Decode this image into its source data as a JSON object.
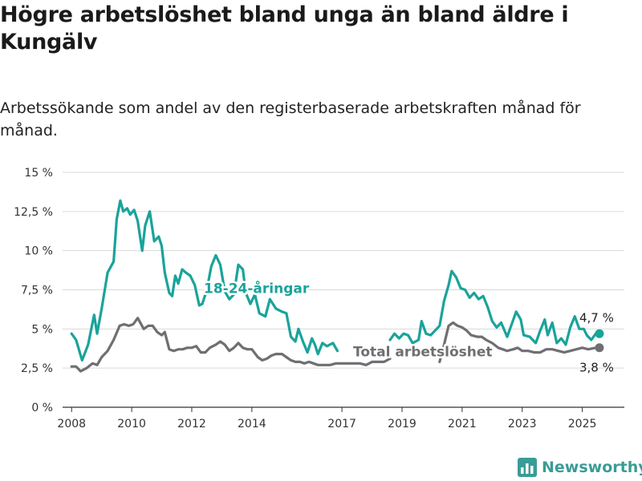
{
  "title": "Högre arbetslöshet bland unga än bland äldre i Kungälv",
  "subtitle": "Arbetssökande som andel av den registerbaserade arbetskraften månad för månad.",
  "brand": {
    "name": "Newsworthy",
    "icon": "bar-chart-logo-icon",
    "color": "#3a9c96"
  },
  "chart_data": {
    "type": "line",
    "ylim": [
      0,
      15
    ],
    "xlim": [
      2007.7,
      2026.4
    ],
    "y_ticks": [
      0,
      2.5,
      5,
      7.5,
      10,
      12.5,
      15
    ],
    "y_tick_labels": [
      "0 %",
      "2,5 %",
      "5 %",
      "7,5 %",
      "10 %",
      "12,5 %",
      "15 %"
    ],
    "x_ticks": [
      2008,
      2010,
      2012,
      2014,
      2017,
      2019,
      2021,
      2023,
      2025
    ],
    "x_tick_labels": [
      "2008",
      "2010",
      "2012",
      "2014",
      "2017",
      "2019",
      "2021",
      "2023",
      "2025"
    ],
    "grid": true,
    "legend": "none",
    "series": [
      {
        "name": "18-24-åringar",
        "color": "#1aa39a",
        "end_label": "4,7 %",
        "points": [
          [
            2008.0,
            4.7
          ],
          [
            2008.15,
            4.3
          ],
          [
            2008.35,
            3.0
          ],
          [
            2008.55,
            4.0
          ],
          [
            2008.75,
            5.9
          ],
          [
            2008.85,
            4.7
          ],
          [
            2009.0,
            6.3
          ],
          [
            2009.2,
            8.6
          ],
          [
            2009.4,
            9.3
          ],
          [
            2009.5,
            12.0
          ],
          [
            2009.62,
            13.2
          ],
          [
            2009.72,
            12.5
          ],
          [
            2009.85,
            12.7
          ],
          [
            2009.95,
            12.3
          ],
          [
            2010.08,
            12.6
          ],
          [
            2010.2,
            11.9
          ],
          [
            2010.35,
            10.0
          ],
          [
            2010.45,
            11.6
          ],
          [
            2010.6,
            12.5
          ],
          [
            2010.75,
            10.6
          ],
          [
            2010.9,
            10.9
          ],
          [
            2011.0,
            10.3
          ],
          [
            2011.1,
            8.6
          ],
          [
            2011.25,
            7.3
          ],
          [
            2011.35,
            7.1
          ],
          [
            2011.45,
            8.4
          ],
          [
            2011.55,
            7.9
          ],
          [
            2011.68,
            8.8
          ],
          [
            2011.8,
            8.6
          ],
          [
            2011.95,
            8.4
          ],
          [
            2012.1,
            7.8
          ],
          [
            2012.25,
            6.5
          ],
          [
            2012.35,
            6.6
          ],
          [
            2012.5,
            7.5
          ],
          [
            2012.65,
            9.0
          ],
          [
            2012.8,
            9.7
          ],
          [
            2012.95,
            9.1
          ],
          [
            2013.1,
            7.4
          ],
          [
            2013.25,
            6.9
          ],
          [
            2013.4,
            7.2
          ],
          [
            2013.55,
            9.1
          ],
          [
            2013.7,
            8.8
          ],
          [
            2013.8,
            7.3
          ],
          [
            2013.95,
            6.6
          ],
          [
            2014.1,
            7.2
          ],
          [
            2014.25,
            6.0
          ],
          [
            2014.45,
            5.8
          ],
          [
            2014.6,
            6.9
          ],
          [
            2014.8,
            6.3
          ],
          [
            2015.0,
            6.1
          ],
          [
            2015.15,
            6.0
          ],
          [
            2015.3,
            4.5
          ],
          [
            2015.45,
            4.2
          ],
          [
            2015.55,
            5.0
          ],
          [
            2015.7,
            4.2
          ],
          [
            2015.85,
            3.5
          ],
          [
            2016.0,
            4.4
          ],
          [
            2016.1,
            4.0
          ],
          [
            2016.2,
            3.4
          ],
          [
            2016.35,
            4.1
          ],
          [
            2016.5,
            3.9
          ],
          [
            2016.7,
            4.1
          ],
          [
            2016.85,
            3.6
          ]
        ],
        "points2": [
          [
            2018.6,
            4.3
          ],
          [
            2018.75,
            4.7
          ],
          [
            2018.9,
            4.4
          ],
          [
            2019.05,
            4.7
          ],
          [
            2019.2,
            4.6
          ],
          [
            2019.35,
            4.1
          ],
          [
            2019.55,
            4.3
          ],
          [
            2019.65,
            5.5
          ],
          [
            2019.8,
            4.7
          ],
          [
            2019.95,
            4.6
          ],
          [
            2020.1,
            4.9
          ],
          [
            2020.25,
            5.2
          ],
          [
            2020.4,
            6.8
          ],
          [
            2020.55,
            7.8
          ],
          [
            2020.65,
            8.7
          ],
          [
            2020.8,
            8.3
          ],
          [
            2020.95,
            7.6
          ],
          [
            2021.1,
            7.5
          ],
          [
            2021.25,
            7.0
          ],
          [
            2021.4,
            7.3
          ],
          [
            2021.55,
            6.9
          ],
          [
            2021.7,
            7.1
          ],
          [
            2021.85,
            6.4
          ],
          [
            2022.0,
            5.5
          ],
          [
            2022.15,
            5.1
          ],
          [
            2022.3,
            5.4
          ],
          [
            2022.5,
            4.5
          ],
          [
            2022.65,
            5.3
          ],
          [
            2022.8,
            6.1
          ],
          [
            2022.95,
            5.6
          ],
          [
            2023.05,
            4.6
          ],
          [
            2023.25,
            4.5
          ],
          [
            2023.45,
            4.1
          ],
          [
            2023.6,
            4.9
          ],
          [
            2023.75,
            5.6
          ],
          [
            2023.85,
            4.6
          ],
          [
            2024.0,
            5.4
          ],
          [
            2024.15,
            4.1
          ],
          [
            2024.3,
            4.4
          ],
          [
            2024.45,
            4.0
          ],
          [
            2024.6,
            5.1
          ],
          [
            2024.75,
            5.8
          ],
          [
            2024.9,
            5.0
          ],
          [
            2025.05,
            5.0
          ],
          [
            2025.15,
            4.6
          ],
          [
            2025.3,
            4.3
          ],
          [
            2025.45,
            4.7
          ]
        ]
      },
      {
        "name": "Total arbetslöshet",
        "color": "#6f6f73",
        "end_label": "3,8 %",
        "points": [
          [
            2008.0,
            2.6
          ],
          [
            2008.15,
            2.6
          ],
          [
            2008.3,
            2.3
          ],
          [
            2008.5,
            2.5
          ],
          [
            2008.7,
            2.8
          ],
          [
            2008.85,
            2.7
          ],
          [
            2009.0,
            3.2
          ],
          [
            2009.2,
            3.6
          ],
          [
            2009.4,
            4.3
          ],
          [
            2009.6,
            5.2
          ],
          [
            2009.75,
            5.3
          ],
          [
            2009.9,
            5.2
          ],
          [
            2010.05,
            5.3
          ],
          [
            2010.2,
            5.7
          ],
          [
            2010.4,
            5.0
          ],
          [
            2010.55,
            5.2
          ],
          [
            2010.7,
            5.2
          ],
          [
            2010.85,
            4.8
          ],
          [
            2011.0,
            4.6
          ],
          [
            2011.1,
            4.8
          ],
          [
            2011.25,
            3.7
          ],
          [
            2011.4,
            3.6
          ],
          [
            2011.55,
            3.7
          ],
          [
            2011.7,
            3.7
          ],
          [
            2011.85,
            3.8
          ],
          [
            2012.0,
            3.8
          ],
          [
            2012.15,
            3.9
          ],
          [
            2012.3,
            3.5
          ],
          [
            2012.45,
            3.5
          ],
          [
            2012.6,
            3.8
          ],
          [
            2012.8,
            4.0
          ],
          [
            2012.95,
            4.2
          ],
          [
            2013.1,
            4.0
          ],
          [
            2013.25,
            3.6
          ],
          [
            2013.4,
            3.8
          ],
          [
            2013.55,
            4.1
          ],
          [
            2013.7,
            3.8
          ],
          [
            2013.85,
            3.7
          ],
          [
            2014.0,
            3.7
          ],
          [
            2014.2,
            3.2
          ],
          [
            2014.35,
            3.0
          ],
          [
            2014.5,
            3.1
          ],
          [
            2014.65,
            3.3
          ],
          [
            2014.8,
            3.4
          ],
          [
            2015.0,
            3.4
          ],
          [
            2015.15,
            3.2
          ],
          [
            2015.3,
            3.0
          ],
          [
            2015.45,
            2.9
          ],
          [
            2015.6,
            2.9
          ],
          [
            2015.75,
            2.8
          ],
          [
            2015.9,
            2.9
          ],
          [
            2016.05,
            2.8
          ],
          [
            2016.2,
            2.7
          ],
          [
            2016.4,
            2.7
          ],
          [
            2016.6,
            2.7
          ],
          [
            2016.8,
            2.8
          ],
          [
            2017.0,
            2.8
          ],
          [
            2017.2,
            2.8
          ],
          [
            2017.4,
            2.8
          ],
          [
            2017.6,
            2.8
          ],
          [
            2017.8,
            2.7
          ],
          [
            2018.0,
            2.9
          ],
          [
            2018.2,
            2.9
          ],
          [
            2018.4,
            2.9
          ],
          [
            2018.6,
            3.1
          ]
        ],
        "points2": [
          [
            2020.25,
            2.9
          ],
          [
            2020.4,
            4.0
          ],
          [
            2020.55,
            5.2
          ],
          [
            2020.7,
            5.4
          ],
          [
            2020.85,
            5.2
          ],
          [
            2021.0,
            5.1
          ],
          [
            2021.15,
            4.9
          ],
          [
            2021.3,
            4.6
          ],
          [
            2021.5,
            4.5
          ],
          [
            2021.65,
            4.5
          ],
          [
            2021.8,
            4.3
          ],
          [
            2022.0,
            4.1
          ],
          [
            2022.2,
            3.8
          ],
          [
            2022.35,
            3.7
          ],
          [
            2022.5,
            3.6
          ],
          [
            2022.7,
            3.7
          ],
          [
            2022.85,
            3.8
          ],
          [
            2023.0,
            3.6
          ],
          [
            2023.2,
            3.6
          ],
          [
            2023.4,
            3.5
          ],
          [
            2023.6,
            3.5
          ],
          [
            2023.8,
            3.7
          ],
          [
            2024.0,
            3.7
          ],
          [
            2024.2,
            3.6
          ],
          [
            2024.4,
            3.5
          ],
          [
            2024.6,
            3.6
          ],
          [
            2024.8,
            3.7
          ],
          [
            2025.0,
            3.8
          ],
          [
            2025.2,
            3.7
          ],
          [
            2025.45,
            3.8
          ]
        ]
      }
    ],
    "annotations": [
      {
        "text": "18-24-åringar",
        "series": 0
      },
      {
        "text": "Total arbetslöshet",
        "series": 1
      }
    ]
  }
}
